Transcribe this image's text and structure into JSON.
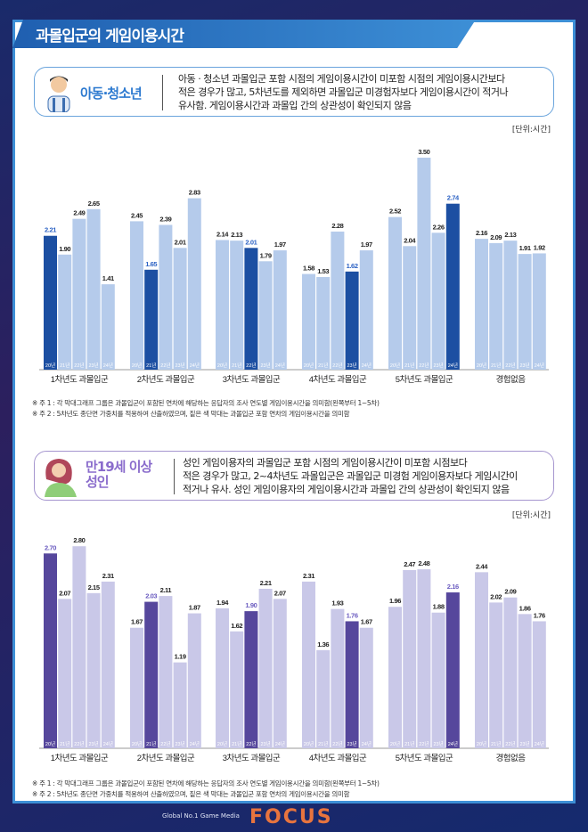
{
  "title": "과몰입군의 게임이용시간",
  "youth": {
    "label": "아동·청소년",
    "desc": [
      "아동 · 청소년 과몰입군 포함 시점의 게임이용시간이 미포함 시점의 게임이용시간보다",
      "적은 경우가 많고, 5차년도를 제외하면 과몰입군 미경험자보다 게임이용시간이 적거나",
      "유사함. 게임이용시간과 과몰입 간의 상관성이 확인되지 않음"
    ],
    "unit": "[단위:시간]",
    "notes": [
      "※ 주 1 : 각 막대그래프 그룹은 과몰입군이 포함된 연차에 해당하는 응답자의 조사 연도별 게임이용시간을 의미함(왼쪽부터 1~5차)",
      "※ 주 2 : 5차년도 종단면 가중치를 적용하여 산출하였으며, 짙은 색 막대는 과몰입군 포함 연차의 게임이용시간을 의미함"
    ]
  },
  "adult": {
    "label": [
      "만19세 이상",
      "성인"
    ],
    "desc": [
      "성인 게임이용자의 과몰입군 포함 시점의 게임이용시간이 미포함 시점보다",
      "적은 경우가 많고, 2~4차년도 과몰입군은 과몰입군 미경험 게임이용자보다 게임시간이",
      "적거나 유사. 성인 게임이용자의 게임이용시간과 과몰입 간의 상관성이 확인되지 않음"
    ],
    "unit": "[단위:시간]",
    "notes": [
      "※ 주 1 : 각 막대그래프 그룹은 과몰입군이 포함된 연차에 해당하는 응답자의 조사 연도별 게임이용시간을 의미함(왼쪽부터 1~5차)",
      "※ 주 2 : 5차년도 종단면 가중치를 적용하여 산출하였으며, 짙은 색 막대는 과몰입군 포함 연차의 게임이용시간을 의미함"
    ]
  },
  "watermark": {
    "tagline": "Global No.1 Game Media",
    "name": "GAME FOCUS"
  },
  "chart_data": [
    {
      "type": "bar",
      "title": "아동·청소년",
      "categories": [
        "1차년도 과몰입군",
        "2차년도 과몰입군",
        "3차년도 과몰입군",
        "4차년도 과몰입군",
        "5차년도 과몰입군",
        "경험없음"
      ],
      "bar_labels": [
        "20년",
        "21년",
        "22년",
        "23년",
        "24년"
      ],
      "values": [
        [
          2.21,
          1.9,
          2.49,
          2.65,
          1.41
        ],
        [
          2.45,
          1.65,
          2.39,
          2.01,
          2.83
        ],
        [
          2.14,
          2.13,
          2.01,
          1.79,
          1.97
        ],
        [
          1.58,
          1.53,
          2.28,
          1.62,
          1.97
        ],
        [
          2.52,
          2.04,
          3.5,
          2.26,
          2.74
        ],
        [
          2.16,
          2.09,
          2.13,
          1.91,
          1.92
        ]
      ],
      "highlight": [
        0,
        1,
        2,
        3,
        4,
        -1
      ],
      "colors": {
        "dark": "#1c4fa2",
        "light": "#b5cbeb",
        "label": "#2c62c4"
      }
    },
    {
      "type": "bar",
      "title": "만19세 이상 성인",
      "categories": [
        "1차년도 과몰입군",
        "2차년도 과몰입군",
        "3차년도 과몰입군",
        "4차년도 과몰입군",
        "5차년도 과몰입군",
        "경험없음"
      ],
      "bar_labels": [
        "20년",
        "21년",
        "22년",
        "23년",
        "24년"
      ],
      "values": [
        [
          2.7,
          2.07,
          2.8,
          2.15,
          2.31
        ],
        [
          1.67,
          2.03,
          2.11,
          1.19,
          1.87
        ],
        [
          1.94,
          1.62,
          1.9,
          2.21,
          2.07
        ],
        [
          2.31,
          1.36,
          1.93,
          1.76,
          1.67
        ],
        [
          1.96,
          2.47,
          2.48,
          1.88,
          2.16
        ],
        [
          2.44,
          2.02,
          2.09,
          1.86,
          1.76
        ]
      ],
      "highlight": [
        0,
        1,
        2,
        3,
        4,
        -1
      ],
      "colors": {
        "dark": "#56479c",
        "light": "#c9c8e8",
        "label": "#6b5cc0"
      }
    }
  ]
}
